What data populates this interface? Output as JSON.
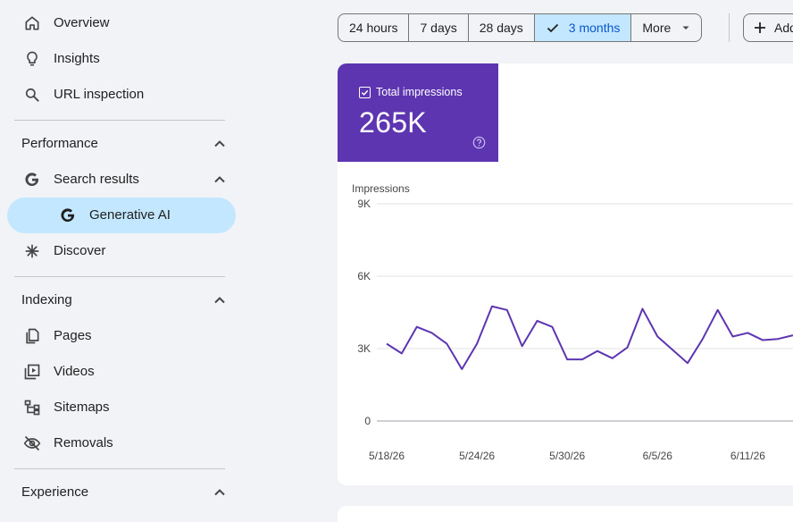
{
  "sidebar": {
    "top_items": [
      {
        "label": "Overview",
        "icon": "home-icon"
      },
      {
        "label": "Insights",
        "icon": "lightbulb-icon"
      },
      {
        "label": "URL inspection",
        "icon": "search-icon"
      }
    ],
    "performance": {
      "label": "Performance",
      "search_results": "Search results",
      "generative_ai": "Generative AI",
      "discover": "Discover"
    },
    "indexing": {
      "label": "Indexing",
      "items": [
        {
          "label": "Pages",
          "icon": "pages-icon"
        },
        {
          "label": "Videos",
          "icon": "video-icon"
        },
        {
          "label": "Sitemaps",
          "icon": "sitemap-icon"
        },
        {
          "label": "Removals",
          "icon": "eye-off-icon"
        }
      ]
    },
    "experience": {
      "label": "Experience"
    }
  },
  "date_range": {
    "options": [
      "24 hours",
      "7 days",
      "28 days",
      "3 months",
      "More"
    ],
    "selected": "3 months",
    "add_label": "Add"
  },
  "metric": {
    "label": "Total impressions",
    "value": "265K",
    "checked": true,
    "color": "#5e35b1"
  },
  "chart_data": {
    "type": "line",
    "ylabel": "Impressions",
    "y_ticks": [
      "9K",
      "6K",
      "3K",
      "0"
    ],
    "ylim": [
      0,
      9000
    ],
    "x_ticks": [
      "5/18/26",
      "5/24/26",
      "5/30/26",
      "6/5/26",
      "6/11/26"
    ],
    "series": [
      {
        "color": "#5e35b1",
        "values": [
          3200,
          2800,
          3900,
          3650,
          3200,
          2150,
          3200,
          4750,
          4600,
          3100,
          4150,
          3900,
          2550,
          2550,
          2900,
          2600,
          3050,
          4650,
          3500,
          2950,
          2400,
          3400,
          4600,
          3500,
          3650,
          3350,
          3400,
          3550
        ]
      }
    ]
  }
}
